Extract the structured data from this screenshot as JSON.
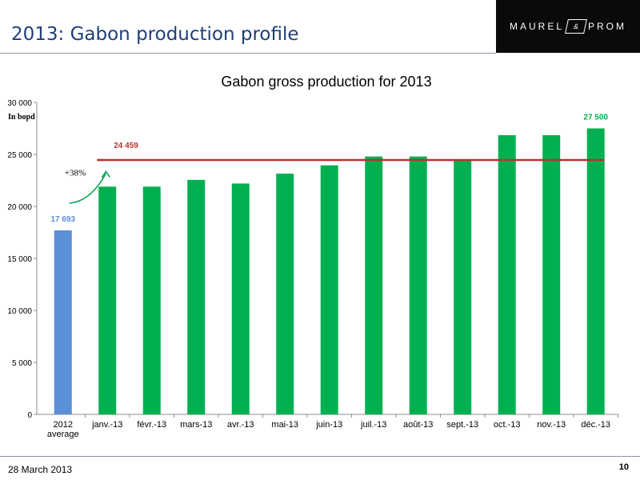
{
  "header": {
    "title": "2013: Gabon production profile",
    "logo_left": "MAUREL",
    "logo_mark": "&",
    "logo_right": "PROM"
  },
  "footer": {
    "date": "28 March 2013",
    "page": "10"
  },
  "chart_data": {
    "type": "bar",
    "title": "Gabon gross production for 2013",
    "unit_label": "In bopd",
    "categories": [
      "2012 average",
      "janv.-13",
      "févr.-13",
      "mars-13",
      "avr.-13",
      "mai-13",
      "juin-13",
      "juil.-13",
      "août-13",
      "sept.-13",
      "oct.-13",
      "nov.-13",
      "déc.-13"
    ],
    "values": [
      17693,
      21900,
      21900,
      22550,
      22200,
      23150,
      23950,
      24800,
      24800,
      24400,
      26850,
      26850,
      27500
    ],
    "bar_colors": [
      "#5b8fd6",
      "#00b050",
      "#00b050",
      "#00b050",
      "#00b050",
      "#00b050",
      "#00b050",
      "#00b050",
      "#00b050",
      "#00b050",
      "#00b050",
      "#00b050",
      "#00b050"
    ],
    "yticks": [
      "0",
      "5 000",
      "10 000",
      "15 000",
      "20 000",
      "25 000",
      "30 000"
    ],
    "ytick_values": [
      0,
      5000,
      10000,
      15000,
      20000,
      25000,
      30000
    ],
    "ylim": [
      0,
      30000
    ],
    "average_line": {
      "value": 24459,
      "label": "24 459",
      "color": "#b83230"
    },
    "data_labels": [
      {
        "index": 0,
        "text": "17 693",
        "color": "#5b8fd6"
      },
      {
        "index": 12,
        "text": "27 500",
        "color": "#00b050"
      }
    ],
    "growth_annotation": {
      "text": "+38%",
      "color": "#00a050"
    },
    "grid": false
  }
}
